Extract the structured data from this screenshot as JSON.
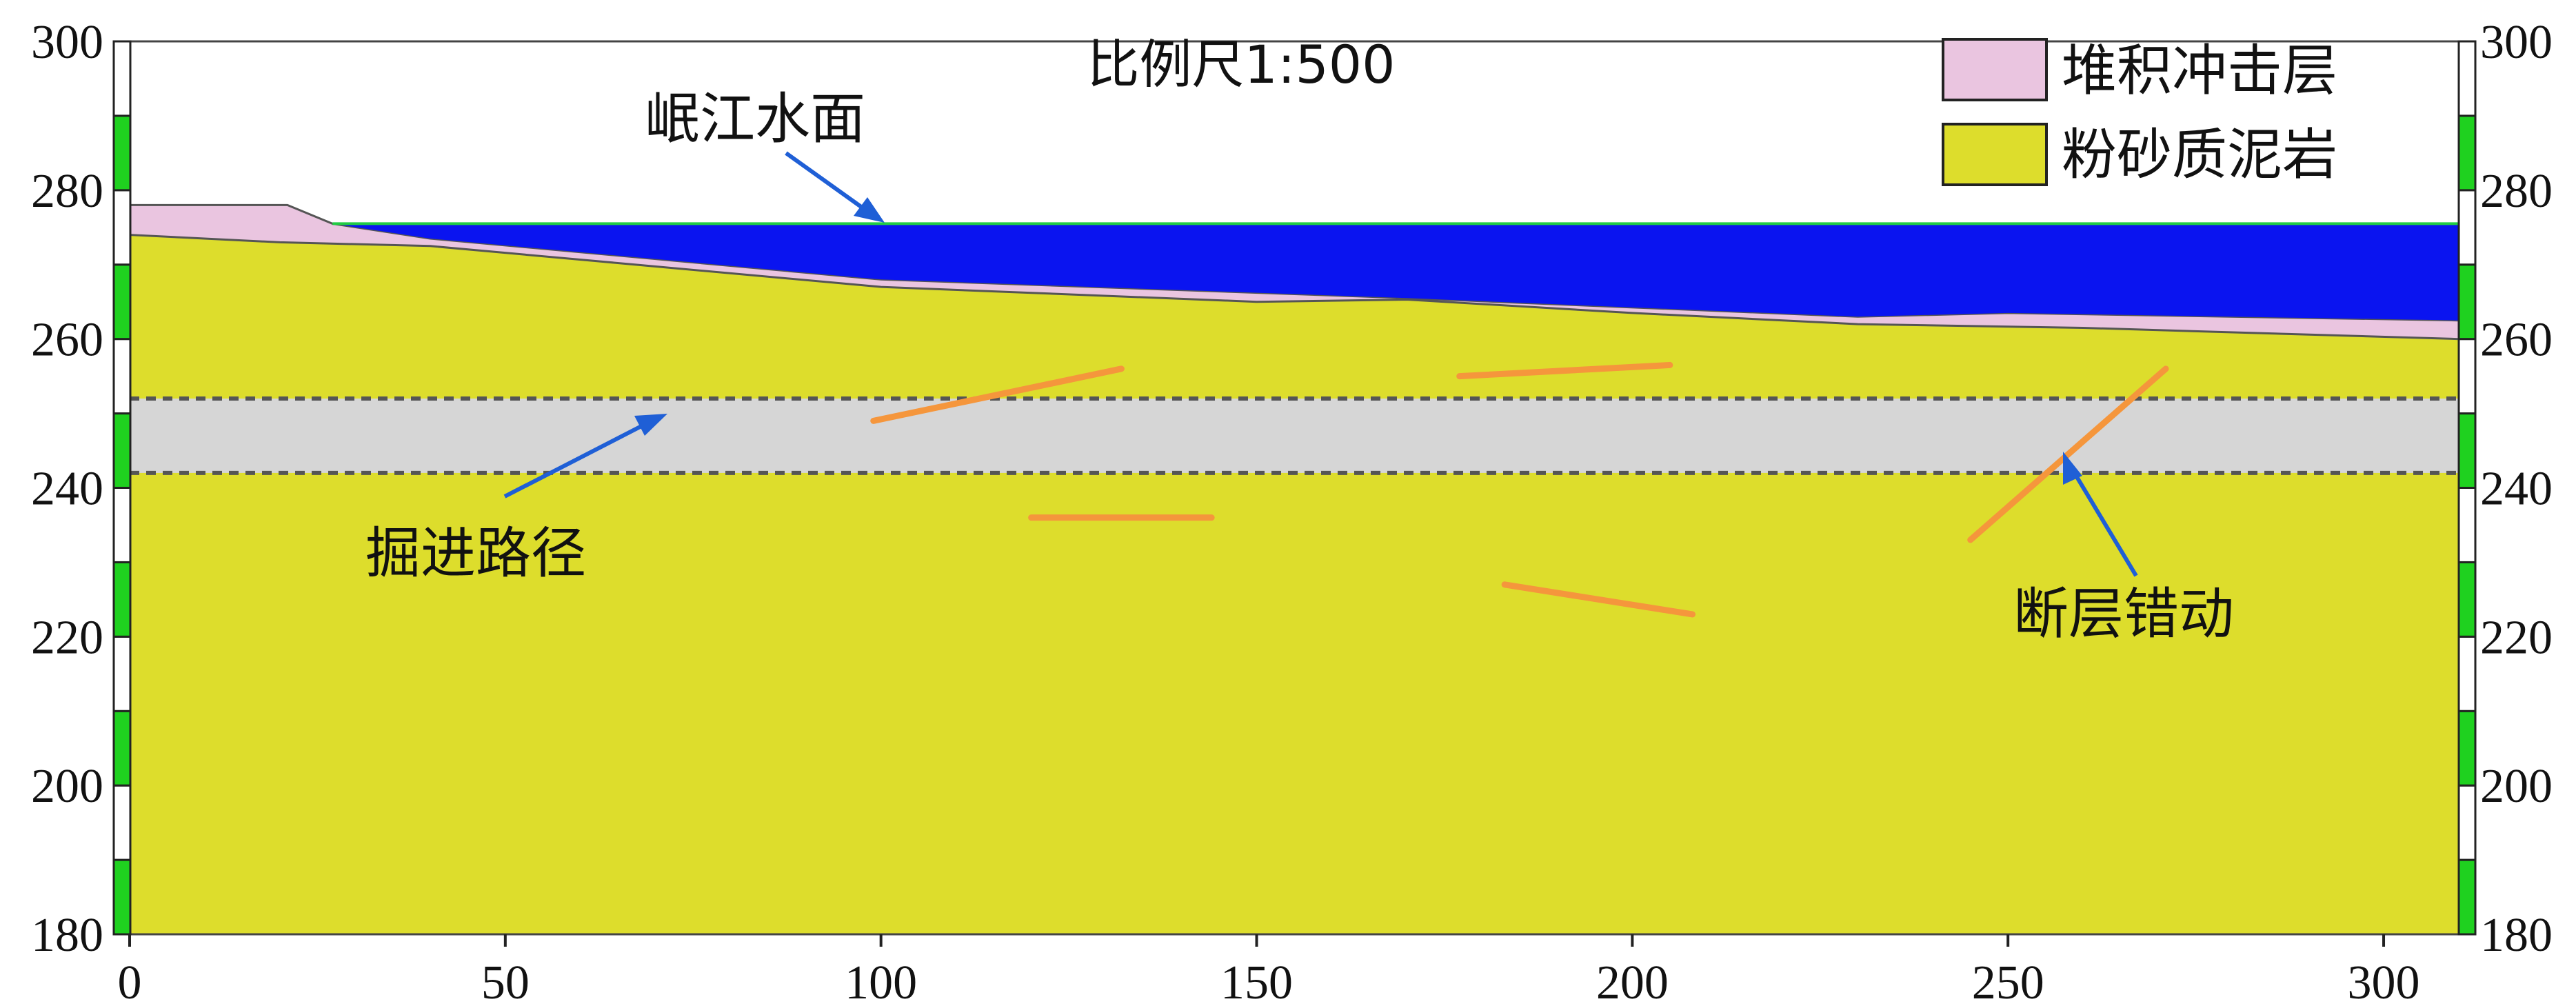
{
  "chart_data": {
    "type": "cross-section",
    "scale_label": "比例尺1:500",
    "x_ticks": [
      "0",
      "50",
      "100",
      "150",
      "200",
      "250",
      "300"
    ],
    "y_ticks": [
      "180",
      "200",
      "220",
      "240",
      "260",
      "280",
      "300"
    ],
    "xlim": [
      0,
      310
    ],
    "ylim": [
      180,
      300
    ],
    "water_level": 275.5,
    "ground_surface": [
      [
        0,
        278
      ],
      [
        21,
        278
      ],
      [
        27,
        275.5
      ],
      [
        310,
        275.5
      ]
    ],
    "water_bottom": [
      [
        27,
        275.5
      ],
      [
        40,
        273.5
      ],
      [
        100,
        268
      ],
      [
        170,
        265.5
      ],
      [
        230,
        263
      ],
      [
        250,
        263.5
      ],
      [
        310,
        262.5
      ]
    ],
    "mudstone_top": [
      [
        0,
        274
      ],
      [
        20,
        273
      ],
      [
        40,
        272.5
      ],
      [
        100,
        267
      ],
      [
        150,
        265
      ],
      [
        170,
        265.3
      ],
      [
        200,
        263.5
      ],
      [
        230,
        262
      ],
      [
        260,
        261.5
      ],
      [
        310,
        260
      ]
    ],
    "tunnel": {
      "top": 252,
      "bottom": 242
    },
    "faults": [
      {
        "x1": 99,
        "y1": 249,
        "x2": 132,
        "y2": 256
      },
      {
        "x1": 120,
        "y1": 236,
        "x2": 144,
        "y2": 236
      },
      {
        "x1": 177,
        "y1": 255,
        "x2": 205,
        "y2": 256.5
      },
      {
        "x1": 183,
        "y1": 227,
        "x2": 208,
        "y2": 223
      },
      {
        "x1": 245,
        "y1": 233,
        "x2": 271,
        "y2": 256
      }
    ],
    "legend": [
      {
        "label": "堆积冲击层",
        "color": "#eac5e0"
      },
      {
        "label": "粉砂质泥岩",
        "color": "#dddd2c"
      }
    ],
    "annotations": {
      "water": "岷江水面",
      "tunnel": "掘进路径",
      "fault": "断层错动"
    },
    "colors": {
      "water": "#0a14f0",
      "mudstone": "#dddd2c",
      "alluvium": "#eac5e0",
      "tunnel": "#d6d6d6",
      "fault": "#f5963c",
      "arrow": "#1f5fd6",
      "waterline": "#22cc44",
      "ruler_green": "#1fd11f"
    }
  }
}
